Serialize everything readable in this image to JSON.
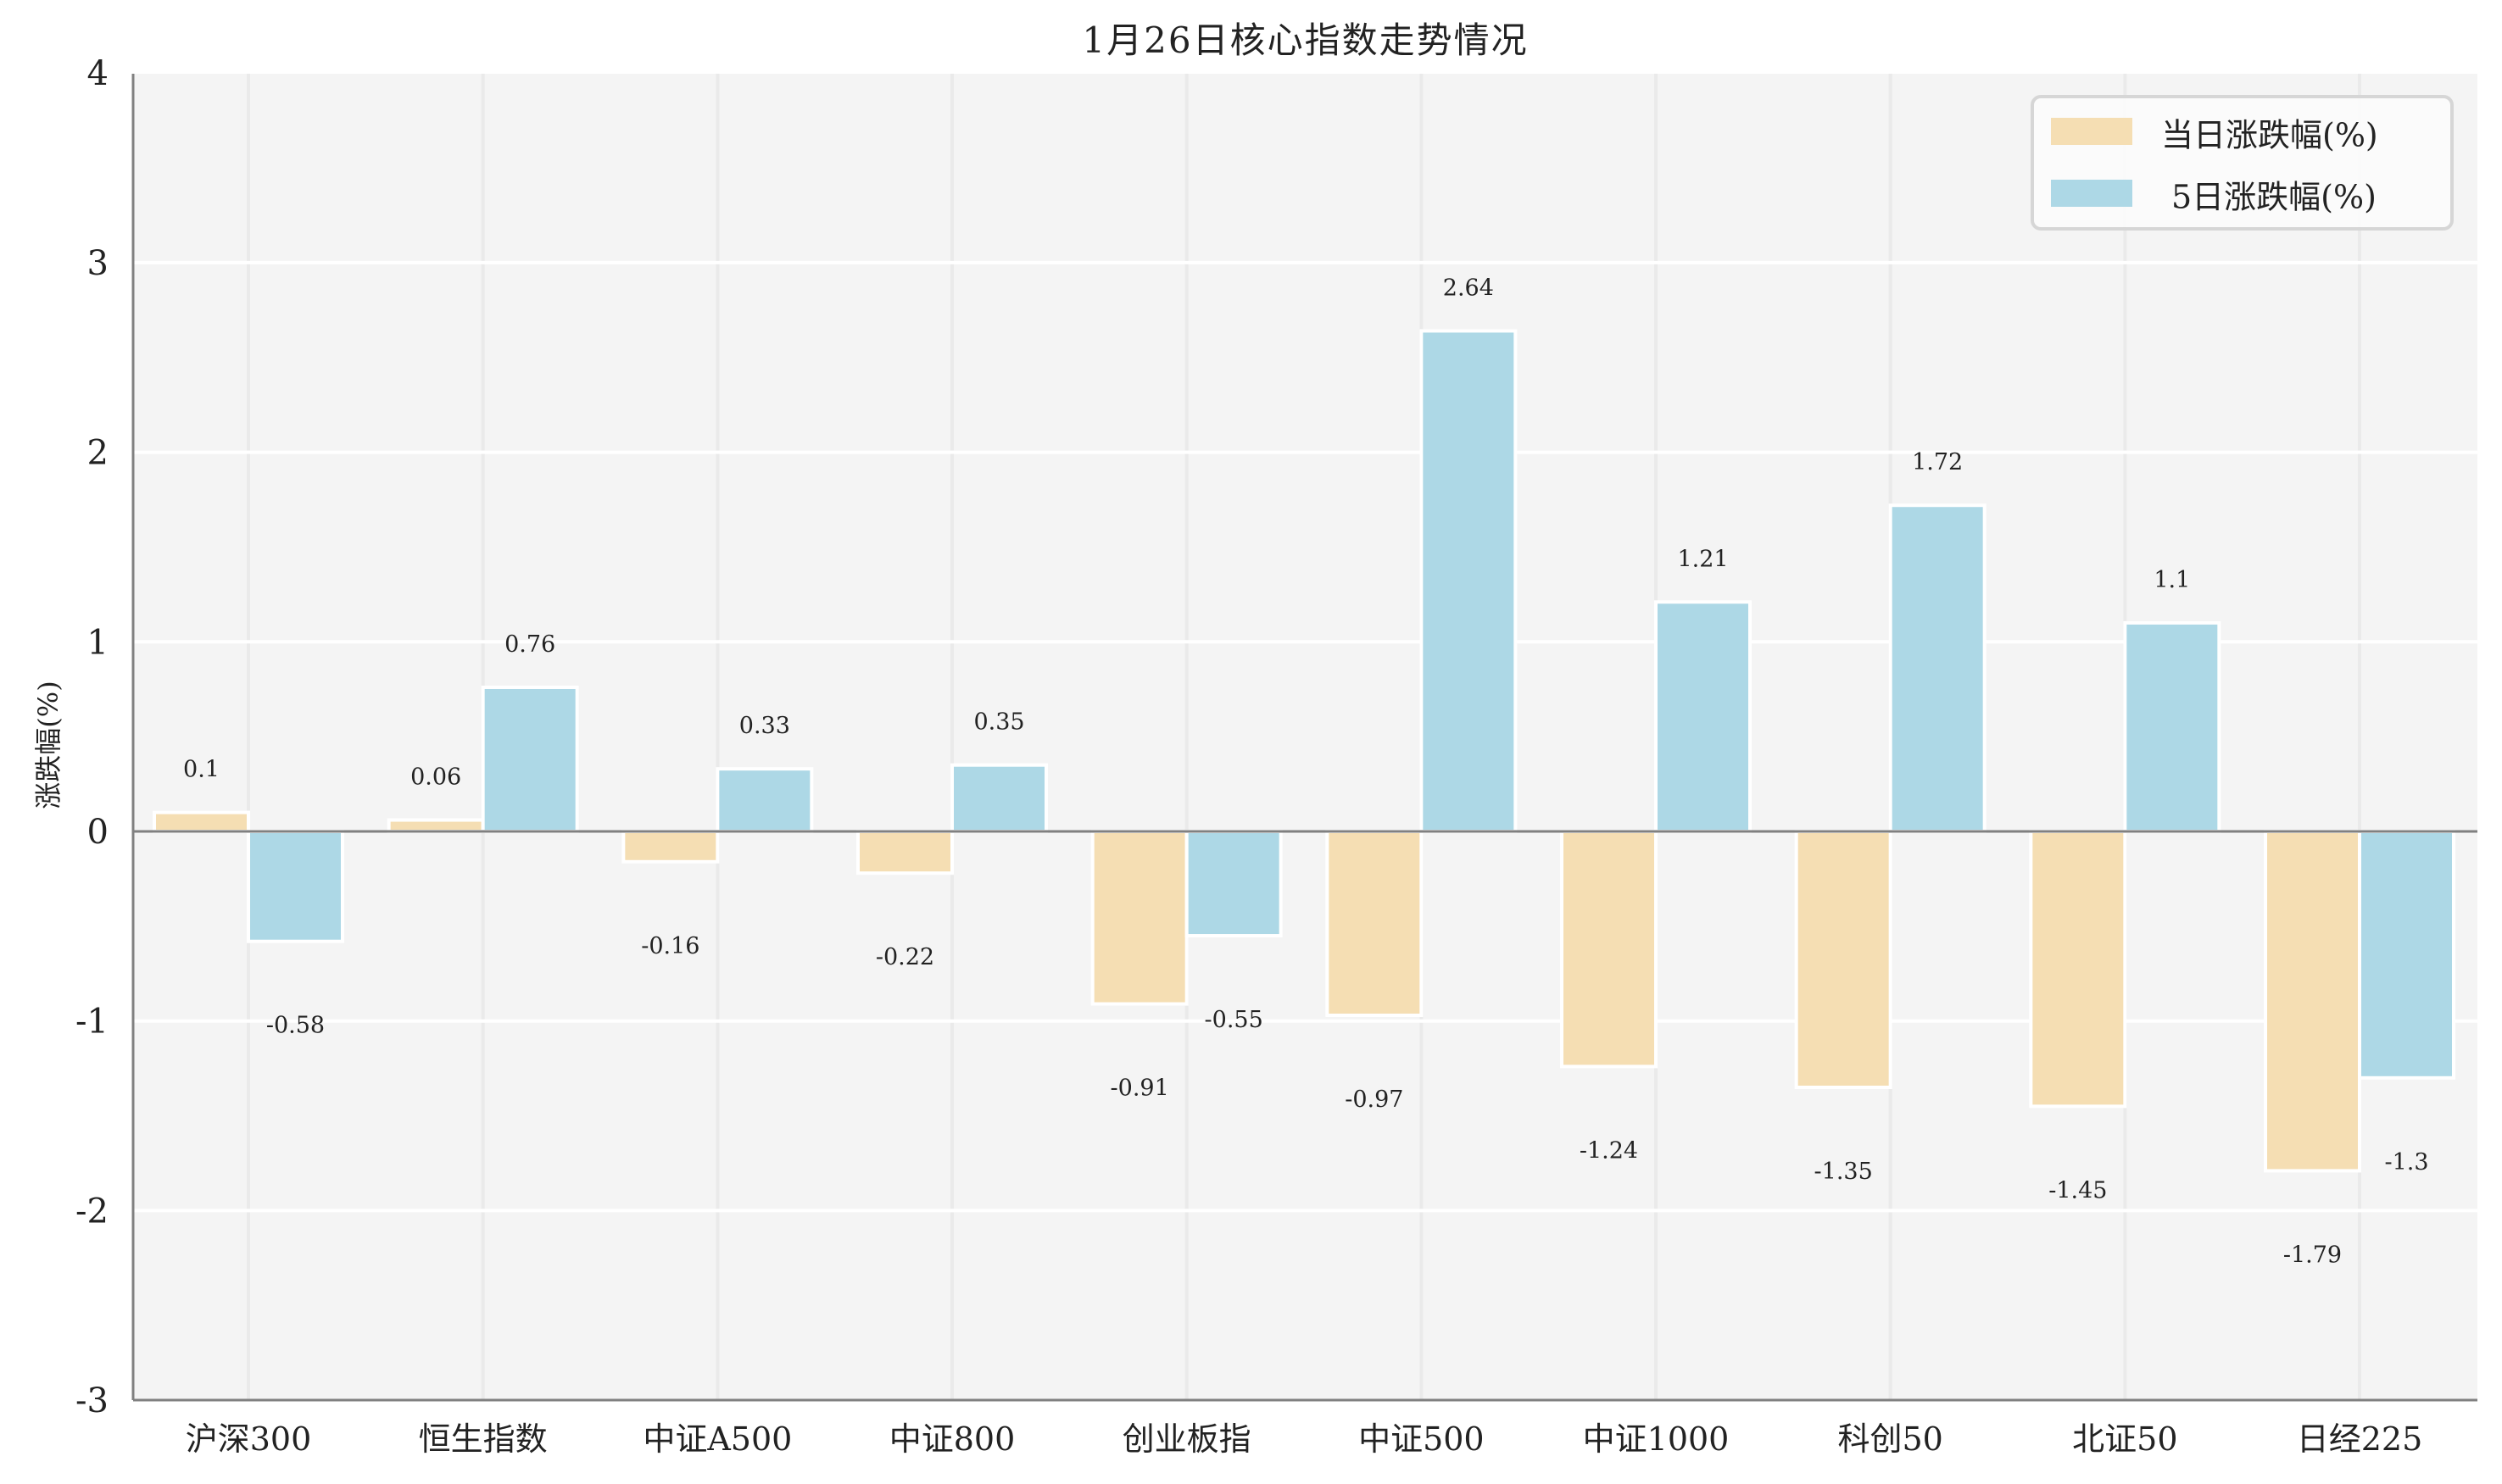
{
  "title": "1月26日核心指数走势情况",
  "colors": {
    "daily": "#F5DEB3",
    "five_day": "#ADD8E6",
    "plot_bg": "#F4F4F4",
    "h_grid": "#FFFFFF",
    "v_grid": "#EAEAEA",
    "spine": "#808080",
    "text": "#222222"
  },
  "legend": {
    "items": [
      {
        "label": " 当日涨跌幅(%)",
        "color": "#F5DEB3"
      },
      {
        "label": "5日涨跌幅(%)",
        "color": "#ADD8E6"
      }
    ]
  },
  "axes": {
    "ylabel": "涨跌幅(%)",
    "yticks": [
      "4",
      "3",
      "2",
      "1",
      "0",
      "-1",
      "-2",
      "-3"
    ]
  },
  "chart_data": {
    "type": "bar",
    "title": "1月26日核心指数走势情况",
    "xlabel": "",
    "ylabel": "涨跌幅(%)",
    "ylim": [
      -3,
      4
    ],
    "yticks": [
      -3,
      -2,
      -1,
      0,
      1,
      2,
      3,
      4
    ],
    "grid": true,
    "legend_position": "upper right",
    "categories": [
      "沪深300",
      "恒生指数",
      "中证A500",
      "中证800",
      "创业板指",
      "中证500",
      "中证1000",
      "科创50",
      "北证50",
      "日经225"
    ],
    "series": [
      {
        "name": "当日涨跌幅(%)",
        "color": "#F5DEB3",
        "values": [
          0.1,
          0.06,
          -0.16,
          -0.22,
          -0.91,
          -0.97,
          -1.24,
          -1.35,
          -1.45,
          -1.79
        ]
      },
      {
        "name": "5日涨跌幅(%)",
        "color": "#ADD8E6",
        "values": [
          -0.58,
          0.76,
          0.33,
          0.35,
          -0.55,
          2.64,
          1.21,
          1.72,
          1.1,
          -1.3
        ]
      }
    ],
    "data_labels": {
      "当日涨跌幅(%)": [
        "0.1",
        "0.06",
        "-0.16",
        "-0.22",
        "-0.91",
        "-0.97",
        "-1.24",
        "-1.35",
        "-1.45",
        "-1.79"
      ],
      "5日涨跌幅(%)": [
        "-0.58",
        "0.76",
        "0.33",
        "0.35",
        "-0.55",
        "2.64",
        "1.21",
        "1.72",
        "1.1",
        "-1.3"
      ]
    }
  }
}
